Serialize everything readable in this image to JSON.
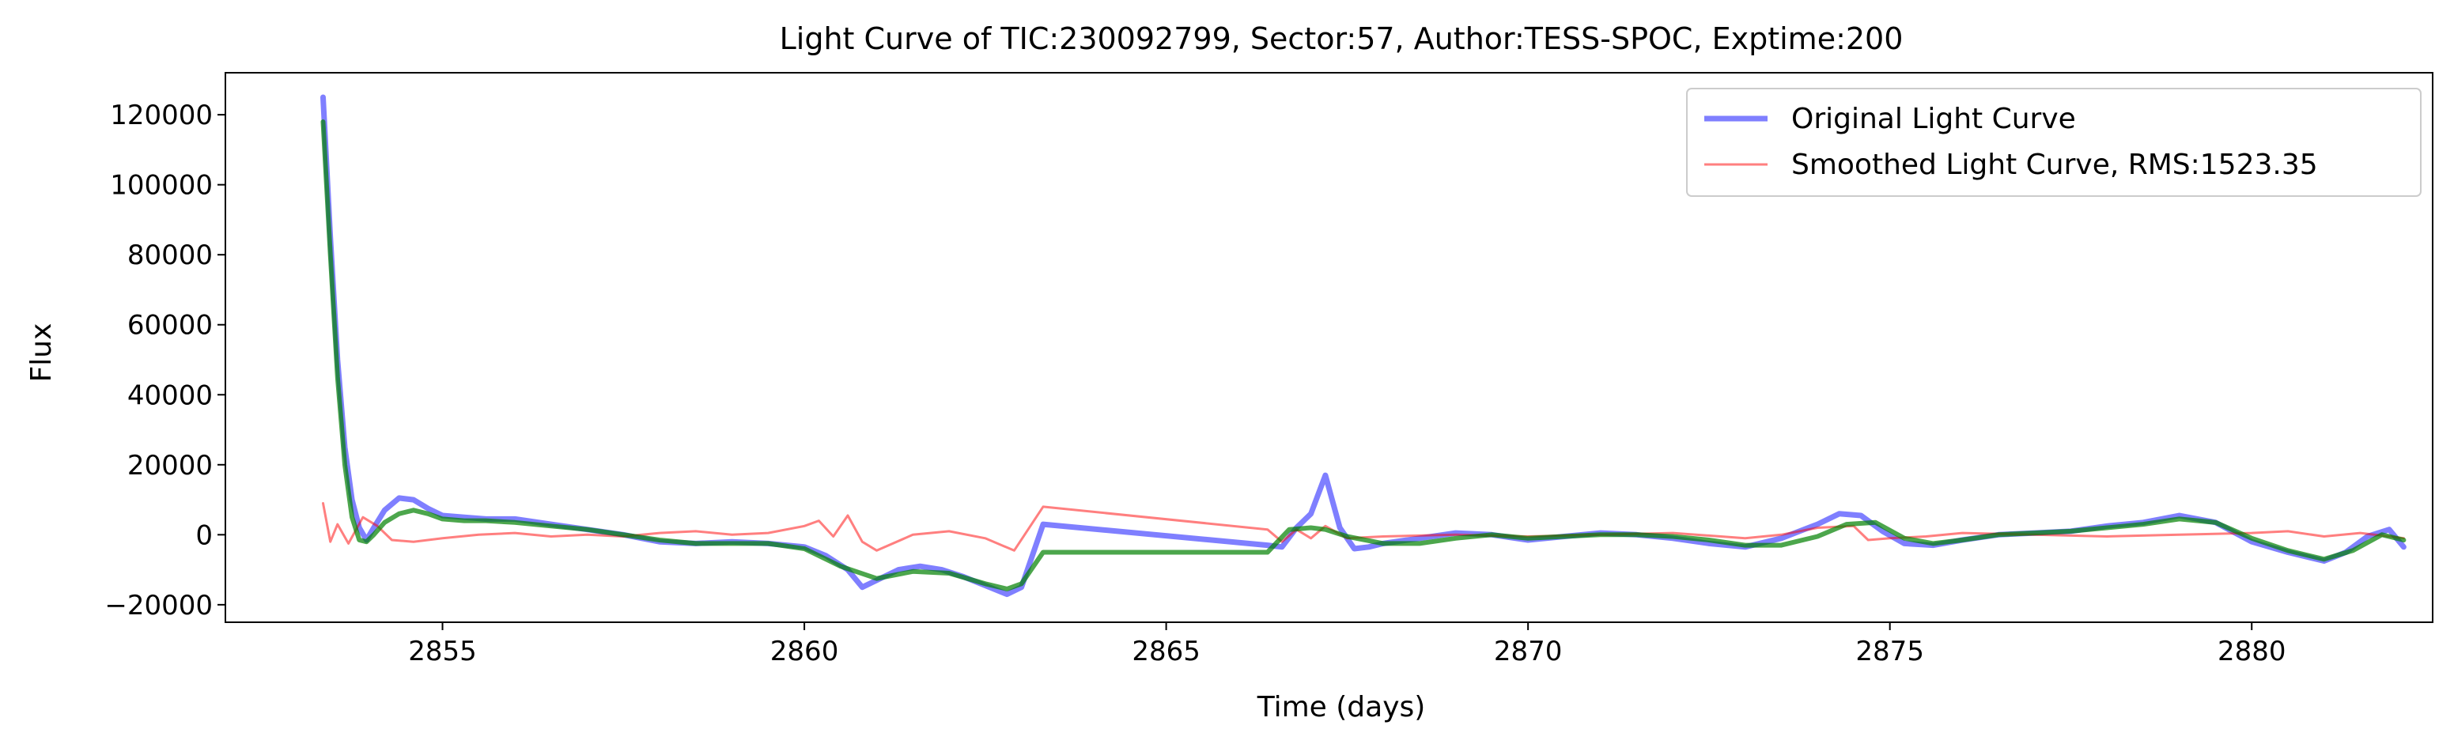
{
  "chart_data": {
    "type": "line",
    "title": "Light Curve of TIC:230092799, Sector:57, Author:TESS-SPOC, Exptime:200",
    "xlabel": "Time (days)",
    "ylabel": "Flux",
    "xlim": [
      2852.0,
      2882.5
    ],
    "ylim": [
      -25000,
      132000
    ],
    "xticks": [
      2855,
      2860,
      2865,
      2870,
      2875,
      2880
    ],
    "yticks": [
      -20000,
      0,
      20000,
      40000,
      60000,
      80000,
      100000,
      120000
    ],
    "grid": false,
    "legend_position": "top-right",
    "series": [
      {
        "name": "Original Light Curve",
        "color": "#0000ff",
        "x": [
          2853.35,
          2853.45,
          2853.55,
          2853.65,
          2853.75,
          2853.85,
          2853.95,
          2854.05,
          2854.2,
          2854.4,
          2854.6,
          2854.8,
          2855.0,
          2855.3,
          2855.6,
          2856.0,
          2856.5,
          2857.0,
          2857.5,
          2858.0,
          2858.5,
          2859.0,
          2859.5,
          2860.0,
          2860.3,
          2860.6,
          2860.8,
          2861.0,
          2861.3,
          2861.6,
          2861.9,
          2862.2,
          2862.5,
          2862.8,
          2863.0,
          2863.3,
          2866.4,
          2866.6,
          2866.8,
          2867.0,
          2867.2,
          2867.4,
          2867.6,
          2867.8,
          2868.0,
          2868.5,
          2869.0,
          2869.5,
          2870.0,
          2870.5,
          2871.0,
          2871.5,
          2872.0,
          2872.5,
          2873.0,
          2873.5,
          2874.0,
          2874.3,
          2874.6,
          2874.9,
          2875.2,
          2875.6,
          2876.0,
          2876.5,
          2877.0,
          2877.5,
          2878.0,
          2878.5,
          2879.0,
          2879.5,
          2880.0,
          2880.5,
          2881.0,
          2881.3,
          2881.6,
          2881.9,
          2882.1
        ],
        "y": [
          125000,
          85000,
          50000,
          25000,
          10000,
          2000,
          -1500,
          2000,
          7000,
          10500,
          10000,
          7500,
          5500,
          5000,
          4500,
          4500,
          3000,
          1500,
          0,
          -2000,
          -2500,
          -2000,
          -2500,
          -3500,
          -6000,
          -10000,
          -15000,
          -13000,
          -10000,
          -9000,
          -10000,
          -12000,
          -14500,
          -17000,
          -15000,
          3000,
          -3000,
          -3500,
          2000,
          6000,
          17000,
          2000,
          -4000,
          -3500,
          -2500,
          -1000,
          500,
          0,
          -1500,
          -500,
          500,
          0,
          -1000,
          -2500,
          -3500,
          -1000,
          3000,
          6000,
          5500,
          1000,
          -2500,
          -3000,
          -1500,
          0,
          500,
          1000,
          2500,
          3500,
          5500,
          3500,
          -2000,
          -5000,
          -7500,
          -5000,
          -500,
          1500,
          -3500
        ]
      },
      {
        "name": "Smoothed Light Curve, RMS:1523.35",
        "color": "#ff0000",
        "x": [
          2853.35,
          2853.45,
          2853.55,
          2853.7,
          2853.9,
          2854.1,
          2854.3,
          2854.6,
          2855.0,
          2855.5,
          2856.0,
          2856.5,
          2857.0,
          2857.5,
          2858.0,
          2858.5,
          2859.0,
          2859.5,
          2860.0,
          2860.2,
          2860.4,
          2860.6,
          2860.8,
          2861.0,
          2861.5,
          2862.0,
          2862.5,
          2862.9,
          2863.3,
          2866.4,
          2866.6,
          2866.8,
          2867.0,
          2867.2,
          2867.5,
          2868.0,
          2869.0,
          2870.0,
          2871.0,
          2872.0,
          2873.0,
          2873.5,
          2874.0,
          2874.5,
          2874.7,
          2875.0,
          2875.5,
          2876.0,
          2877.0,
          2878.0,
          2879.0,
          2880.0,
          2880.5,
          2881.0,
          2881.5,
          2882.1
        ],
        "y": [
          9000,
          -2000,
          3000,
          -2500,
          5000,
          2500,
          -1500,
          -2000,
          -1000,
          0,
          500,
          -500,
          0,
          -500,
          500,
          1000,
          0,
          500,
          2500,
          4000,
          -500,
          5500,
          -2000,
          -4500,
          0,
          1000,
          -1000,
          -4500,
          8000,
          1500,
          -2000,
          1500,
          -1000,
          2500,
          -1000,
          -500,
          0,
          -500,
          0,
          500,
          -1000,
          0,
          2000,
          2500,
          -1500,
          -1000,
          -500,
          500,
          0,
          -500,
          0,
          500,
          1000,
          -500,
          500,
          -1000
        ]
      },
      {
        "name": "",
        "color": "#008000",
        "x": [
          2853.35,
          2853.45,
          2853.55,
          2853.65,
          2853.75,
          2853.85,
          2853.95,
          2854.05,
          2854.2,
          2854.4,
          2854.6,
          2854.8,
          2855.0,
          2855.3,
          2855.6,
          2856.0,
          2856.5,
          2857.0,
          2857.5,
          2858.0,
          2858.5,
          2859.0,
          2859.5,
          2860.0,
          2860.5,
          2861.0,
          2861.5,
          2862.0,
          2862.5,
          2862.8,
          2863.0,
          2863.3,
          2866.4,
          2866.7,
          2867.0,
          2867.2,
          2867.5,
          2868.0,
          2868.5,
          2869.0,
          2869.5,
          2870.0,
          2870.5,
          2871.0,
          2871.5,
          2872.0,
          2872.5,
          2873.0,
          2873.5,
          2874.0,
          2874.4,
          2874.8,
          2875.2,
          2875.6,
          2876.0,
          2876.5,
          2877.0,
          2877.5,
          2878.0,
          2878.5,
          2879.0,
          2879.5,
          2880.0,
          2880.5,
          2881.0,
          2881.4,
          2881.8,
          2882.1
        ],
        "y": [
          118000,
          80000,
          45000,
          20000,
          5000,
          -1500,
          -2000,
          0,
          3500,
          6000,
          7000,
          6000,
          4500,
          4000,
          4000,
          3500,
          2500,
          1500,
          0,
          -1500,
          -2500,
          -2500,
          -2500,
          -4000,
          -9000,
          -12500,
          -10500,
          -11000,
          -14000,
          -15500,
          -14000,
          -5000,
          -5000,
          1500,
          2000,
          1500,
          -500,
          -2500,
          -2500,
          -1000,
          0,
          -1000,
          -500,
          0,
          0,
          -500,
          -1500,
          -3000,
          -3000,
          -500,
          3000,
          3500,
          -1000,
          -2500,
          -1500,
          0,
          500,
          1000,
          2000,
          3000,
          4500,
          3500,
          -1000,
          -4500,
          -7000,
          -4500,
          0,
          -1500
        ]
      }
    ]
  }
}
